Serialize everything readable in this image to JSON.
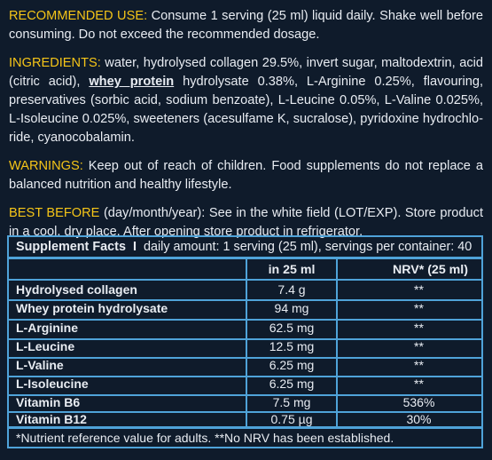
{
  "recommended_use": {
    "label": "RECOMMENDED USE:",
    "text": " Consume 1 serving (25 ml) liquid daily. Shake well before consuming. Do not exceed the recommended dosage."
  },
  "ingredients": {
    "label": "INGREDIENTS:",
    "text_a": " water, hydrolysed collagen 29.5%, invert sugar, maltodextrin, acid (citric acid), ",
    "whey": "whey protein",
    "text_b": " hydrolysate 0.38%, L-Arginine 0.25%, flavouring, preservatives (sorbic acid, sodium benzoate), L-Leucine 0.05%, L-Valine 0.025%, L-Isoleucine 0.025%, sweeteners (acesulfame K, sucralose), pyridoxine hydrochlo-ride, cyanocobalamin."
  },
  "warnings": {
    "label": "WARNINGS:",
    "text": " Keep out of reach of children. Food supplements do not replace a balanced nutrition and healthy lifestyle."
  },
  "best_before": {
    "label": "BEST BEFORE",
    "text": " (day/month/year): See in the white field (LOT/EXP). Store product in a cool, dry place. After opening store product in refrigerator."
  },
  "facts": {
    "title": "Supplement Facts",
    "separator": "I",
    "subtitle": "daily amount: 1 serving (25 ml), servings per container: 40",
    "col_amount": "in 25 ml",
    "col_nrv": "NRV* (25 ml)",
    "rows": [
      {
        "name": "Hydrolysed collagen",
        "amount": "7.4 g",
        "nrv": "**"
      },
      {
        "name": "Whey protein hydrolysate",
        "amount": "94 mg",
        "nrv": "**"
      },
      {
        "name": "L-Arginine",
        "amount": "62.5 mg",
        "nrv": "**"
      },
      {
        "name": "L-Leucine",
        "amount": "12.5 mg",
        "nrv": "**"
      },
      {
        "name": "L-Valine",
        "amount": "6.25 mg",
        "nrv": "**"
      },
      {
        "name": "L-Isoleucine",
        "amount": "6.25 mg",
        "nrv": "**"
      },
      {
        "name": "Vitamin B6",
        "amount": "7.5 mg",
        "nrv": "536%"
      },
      {
        "name": "Vitamin B12",
        "amount": "0.75 µg",
        "nrv": "30%"
      }
    ],
    "footnote": "*Nutrient reference value for adults. **No NRV has been established."
  }
}
